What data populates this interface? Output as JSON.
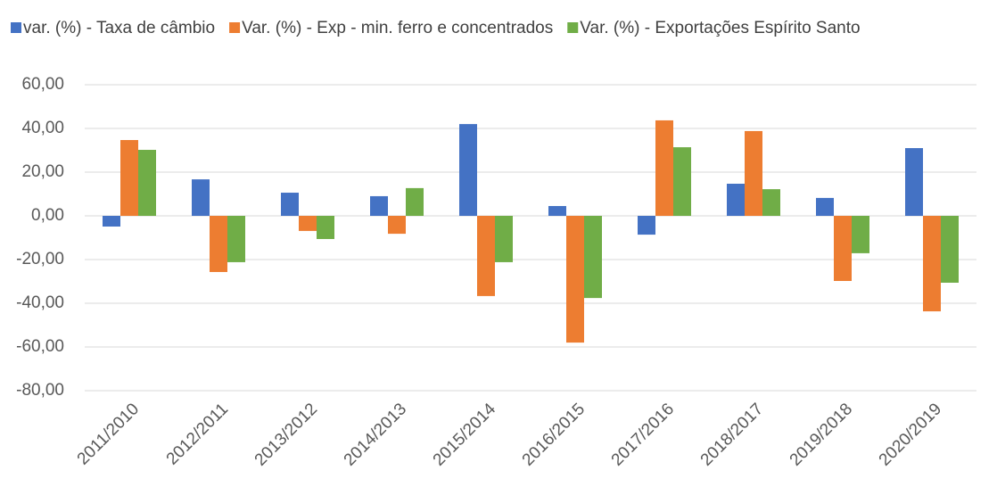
{
  "chart_data": {
    "type": "bar",
    "categories": [
      "2011/2010",
      "2012/2011",
      "2013/2012",
      "2014/2013",
      "2015/2014",
      "2016/2015",
      "2017/2016",
      "2018/2017",
      "2019/2018",
      "2020/2019"
    ],
    "series": [
      {
        "name": "var. (%) - Taxa de câmbio",
        "color": "#4472c4",
        "values": [
          -4.9,
          16.7,
          10.6,
          9,
          42,
          4.5,
          -8.6,
          14.7,
          8.2,
          31
        ]
      },
      {
        "name": "Var. (%) - Exp - min. ferro e concentrados",
        "color": "#ed7d31",
        "values": [
          34.7,
          -25.7,
          -6.9,
          -8.2,
          -36.7,
          -58,
          43.7,
          38.8,
          -29.8,
          -43.7
        ]
      },
      {
        "name": "Var. (%) - Exportações Espírito Santo",
        "color": "#70ad47",
        "values": [
          30.2,
          -21.2,
          -10.6,
          12.7,
          -21.2,
          -37.6,
          31.4,
          12.2,
          -17.1,
          -30.6
        ]
      }
    ],
    "ylim": [
      -80,
      60
    ],
    "yticks": [
      {
        "value": -80,
        "label": "-80,00"
      },
      {
        "value": -60,
        "label": "-60,00"
      },
      {
        "value": -40,
        "label": "-40,00"
      },
      {
        "value": -20,
        "label": "-20,00"
      },
      {
        "value": 0,
        "label": "0,00"
      },
      {
        "value": 20,
        "label": "20,00"
      },
      {
        "value": 40,
        "label": "40,00"
      },
      {
        "value": 60,
        "label": "60,00"
      }
    ],
    "grid": true,
    "legend": "top"
  }
}
